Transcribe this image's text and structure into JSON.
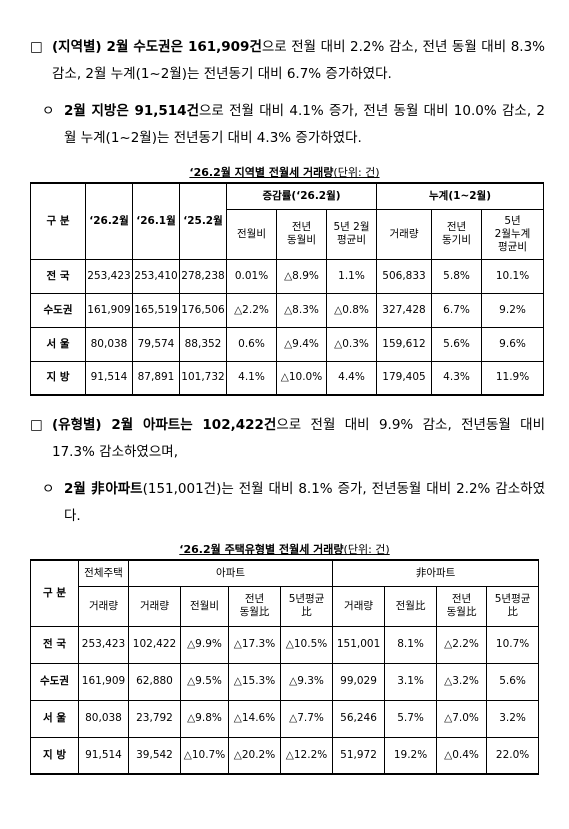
{
  "paragraphs": [
    {
      "bullet": "□",
      "bold": "(지역별) 2월 수도권은 161,909건",
      "text": "으로 전월 대비 2.2% 감소, 전년 동월 대비 8.3% 감소, 2월 누계(1~2월)는 전년동기 대비 6.7% 증가하였다."
    },
    {
      "bullet": "ㅇ",
      "bold": "2월 지방은 91,514건",
      "text": "으로 전월 대비 4.1% 증가, 전년 동월 대비 10.0% 감소, 2월 누계(1~2월)는 전년동기 대비 4.3% 증가하였다."
    },
    {
      "bullet": "□",
      "bold": "(유형별) 2월 아파트는 102,422건",
      "text": "으로 전월 대비 9.9% 감소, 전년동월 대비 17.3% 감소하였으며,"
    },
    {
      "bullet": "ㅇ",
      "bold": "2월 非아파트",
      "text": "(151,001건)는 전월 대비 8.1% 증가, 전년동월 대비 2.2% 감소하였다."
    }
  ],
  "table1": {
    "caption": "‘26.2월 지역별 전월세 거래량",
    "unit": "(단위: 건)",
    "head": {
      "label": "구 분",
      "cols": [
        "‘26.2월",
        "‘26.1월",
        "‘25.2월"
      ],
      "group1": "증감률(‘26.2월)",
      "group1_cols": [
        "전월비",
        "전년\n동월비",
        "5년 2월\n평균비"
      ],
      "group2": "누계(1~2월)",
      "group2_cols": [
        "거래량",
        "전년\n동기비",
        "5년\n2월누계\n평균비"
      ]
    },
    "rows": [
      [
        "전 국",
        "253,423",
        "253,410",
        "278,238",
        "0.01%",
        "△8.9%",
        "1.1%",
        "506,833",
        "5.8%",
        "10.1%"
      ],
      [
        "수도권",
        "161,909",
        "165,519",
        "176,506",
        "△2.2%",
        "△8.3%",
        "△0.8%",
        "327,428",
        "6.7%",
        "9.2%"
      ],
      [
        "서 울",
        "80,038",
        "79,574",
        "88,352",
        "0.6%",
        "△9.4%",
        "△0.3%",
        "159,612",
        "5.6%",
        "9.6%"
      ],
      [
        "지 방",
        "91,514",
        "87,891",
        "101,732",
        "4.1%",
        "△10.0%",
        "4.4%",
        "179,405",
        "4.3%",
        "11.9%"
      ]
    ]
  },
  "table2": {
    "caption": "‘26.2월 주택유형별 전월세 거래량",
    "unit": "(단위: 건)",
    "head": {
      "label": "구 분",
      "total": "전체주택",
      "total_col": "거래량",
      "group1": "아파트",
      "group1_cols": [
        "거래량",
        "전월비",
        "전년\n동월比",
        "5년평균\n比"
      ],
      "group2": "非아파트",
      "group2_cols": [
        "거래량",
        "전월比",
        "전년\n동월比",
        "5년평균\n比"
      ]
    },
    "rows": [
      [
        "전 국",
        "253,423",
        "102,422",
        "△9.9%",
        "△17.3%",
        "△10.5%",
        "151,001",
        "8.1%",
        "△2.2%",
        "10.7%"
      ],
      [
        "수도권",
        "161,909",
        "62,880",
        "△9.5%",
        "△15.3%",
        "△9.3%",
        "99,029",
        "3.1%",
        "△3.2%",
        "5.6%"
      ],
      [
        "서 울",
        "80,038",
        "23,792",
        "△9.8%",
        "△14.6%",
        "△7.7%",
        "56,246",
        "5.7%",
        "△7.0%",
        "3.2%"
      ],
      [
        "지 방",
        "91,514",
        "39,542",
        "△10.7%",
        "△20.2%",
        "△12.2%",
        "51,972",
        "19.2%",
        "△0.4%",
        "22.0%"
      ]
    ]
  }
}
